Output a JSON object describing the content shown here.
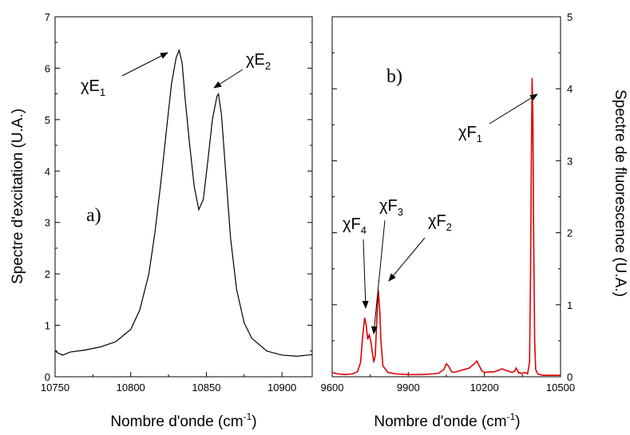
{
  "chart_data": [
    {
      "type": "line",
      "panel_label": "a)",
      "xlabel": "Nombre d'onde (cm-1)",
      "xlabel_main": "Nombre d'onde (cm",
      "xlabel_sup": "-1",
      "xlabel_tail": ")",
      "ylabel": "Spectre d'excitation (U.A.)",
      "xlim": [
        10750,
        10920
      ],
      "ylim": [
        0,
        7
      ],
      "x_ticks": [
        10750,
        10800,
        10850,
        10900
      ],
      "y_ticks": [
        0,
        1,
        2,
        3,
        4,
        5,
        6,
        7
      ],
      "grid": false,
      "series": [
        {
          "color": "#000000",
          "x": [
            10750,
            10752,
            10755,
            10760,
            10770,
            10780,
            10790,
            10800,
            10806,
            10812,
            10816,
            10820,
            10824,
            10827,
            10830,
            10832,
            10834,
            10836,
            10839,
            10842,
            10845,
            10848,
            10851,
            10854,
            10857,
            10858,
            10860,
            10863,
            10866,
            10870,
            10875,
            10880,
            10890,
            10900,
            10910,
            10920
          ],
          "y": [
            0.5,
            0.46,
            0.42,
            0.48,
            0.52,
            0.58,
            0.68,
            0.92,
            1.3,
            2.0,
            2.8,
            3.8,
            4.9,
            5.7,
            6.2,
            6.35,
            6.1,
            5.4,
            4.5,
            3.7,
            3.25,
            3.45,
            4.2,
            5.0,
            5.45,
            5.5,
            5.1,
            3.9,
            2.7,
            1.7,
            1.05,
            0.75,
            0.5,
            0.42,
            0.4,
            0.43
          ]
        }
      ],
      "annotations": [
        {
          "main": "χE",
          "sub": "1",
          "x": 10832,
          "y": 6.35
        },
        {
          "main": "χE",
          "sub": "2",
          "x": 10858,
          "y": 5.45
        }
      ]
    },
    {
      "type": "line",
      "panel_label": "b)",
      "xlabel": "Nombre d'onde (cm-1)",
      "xlabel_main": "Nombre d'onde (cm",
      "xlabel_sup": "-1",
      "xlabel_tail": ")",
      "ylabel": "Spectre de fluorescence (U.A.)",
      "xlim": [
        9600,
        10500
      ],
      "ylim": [
        0,
        5
      ],
      "x_ticks": [
        9600,
        9900,
        10200,
        10500
      ],
      "y_ticks": [
        0,
        1,
        2,
        3,
        4,
        5
      ],
      "y_axis_side": "right",
      "grid": false,
      "series": [
        {
          "color": "#dd0000",
          "x": [
            9600,
            9620,
            9650,
            9680,
            9700,
            9712,
            9720,
            9728,
            9734,
            9740,
            9746,
            9752,
            9758,
            9764,
            9770,
            9776,
            9782,
            9788,
            9792,
            9800,
            9820,
            9850,
            9900,
            9950,
            10000,
            10020,
            10040,
            10050,
            10060,
            10070,
            10080,
            10100,
            10140,
            10160,
            10170,
            10180,
            10190,
            10200,
            10240,
            10270,
            10290,
            10310,
            10320,
            10325,
            10330,
            10335,
            10340,
            10345,
            10350,
            10360,
            10370,
            10378,
            10382,
            10385,
            10388,
            10391,
            10394,
            10398,
            10402,
            10410,
            10430,
            10460,
            10500
          ],
          "y": [
            0.06,
            0.04,
            0.03,
            0.04,
            0.07,
            0.2,
            0.55,
            0.82,
            0.72,
            0.52,
            0.58,
            0.5,
            0.35,
            0.2,
            0.3,
            0.8,
            1.2,
            0.9,
            0.5,
            0.15,
            0.06,
            0.04,
            0.03,
            0.03,
            0.04,
            0.05,
            0.1,
            0.18,
            0.14,
            0.07,
            0.06,
            0.08,
            0.12,
            0.18,
            0.22,
            0.15,
            0.08,
            0.06,
            0.07,
            0.11,
            0.08,
            0.06,
            0.08,
            0.12,
            0.09,
            0.05,
            0.06,
            0.04,
            0.05,
            0.06,
            0.04,
            0.2,
            1.5,
            3.0,
            4.15,
            3.6,
            2.0,
            0.5,
            0.1,
            0.04,
            0.02,
            0.02,
            0.02
          ]
        }
      ],
      "annotations": [
        {
          "main": "χF",
          "sub": "1",
          "x": 10388,
          "y": 4.1
        },
        {
          "main": "χF",
          "sub": "2",
          "x": 9782,
          "y": 1.2
        },
        {
          "main": "χF",
          "sub": "3",
          "x": 9745,
          "y": 0.55
        },
        {
          "main": "χF",
          "sub": "4",
          "x": 9728,
          "y": 0.8
        }
      ]
    }
  ]
}
